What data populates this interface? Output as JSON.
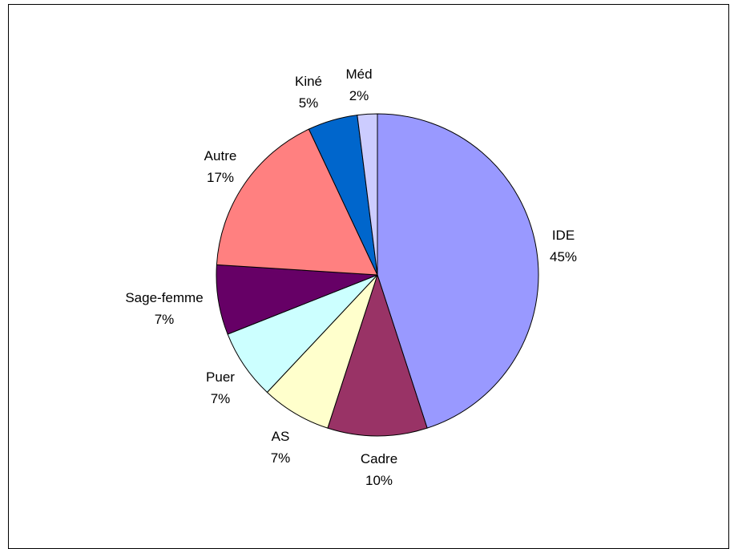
{
  "chart_data": {
    "type": "pie",
    "title": "",
    "legend": "none",
    "start_angle_deg": 0,
    "direction": "clockwise",
    "slices": [
      {
        "label": "IDE",
        "value": 45,
        "value_label": "45%",
        "color": "#9999FF"
      },
      {
        "label": "Cadre",
        "value": 10,
        "value_label": "10%",
        "color": "#993366"
      },
      {
        "label": "AS",
        "value": 7,
        "value_label": "7%",
        "color": "#FFFFCC"
      },
      {
        "label": "Puer",
        "value": 7,
        "value_label": "7%",
        "color": "#CCFFFF"
      },
      {
        "label": "Sage-femme",
        "value": 7,
        "value_label": "7%",
        "color": "#660066"
      },
      {
        "label": "Autre",
        "value": 17,
        "value_label": "17%",
        "color": "#FF8080"
      },
      {
        "label": "Kiné",
        "value": 5,
        "value_label": "5%",
        "color": "#0066CC"
      },
      {
        "label": "Méd",
        "value": 2,
        "value_label": "2%",
        "color": "#CCCCFF"
      }
    ]
  }
}
